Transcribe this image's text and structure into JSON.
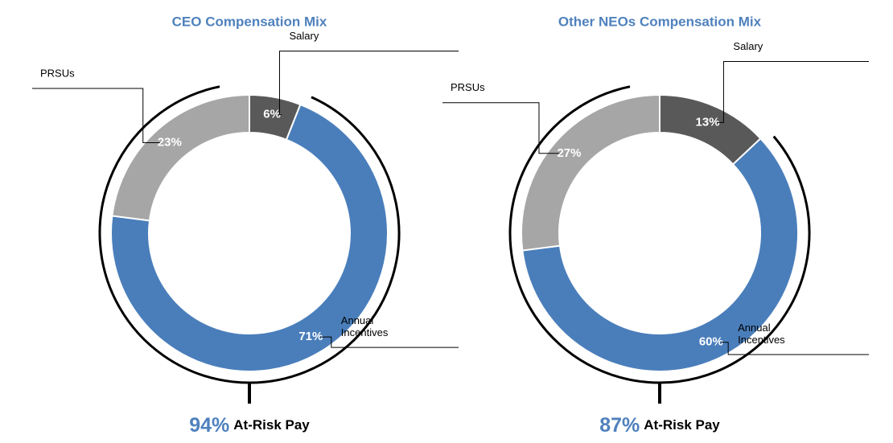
{
  "chart_data": [
    {
      "type": "pie",
      "title": "CEO Compensation Mix",
      "categories": [
        "Salary",
        "Annual Incentives",
        "PRSUs"
      ],
      "values": [
        6,
        71,
        23
      ],
      "value_labels": [
        "6%",
        "71%",
        "23%"
      ],
      "colors": [
        "#595959",
        "#4a7ebb",
        "#a6a6a6"
      ],
      "at_risk_value": "94%",
      "at_risk_label": "At-Risk Pay"
    },
    {
      "type": "pie",
      "title": "Other NEOs Compensation Mix",
      "categories": [
        "Salary",
        "Annual Incentives",
        "PRSUs"
      ],
      "values": [
        13,
        60,
        27
      ],
      "value_labels": [
        "13%",
        "60%",
        "27%"
      ],
      "colors": [
        "#595959",
        "#4a7ebb",
        "#a6a6a6"
      ],
      "at_risk_value": "87%",
      "at_risk_label": "At-Risk Pay"
    }
  ]
}
